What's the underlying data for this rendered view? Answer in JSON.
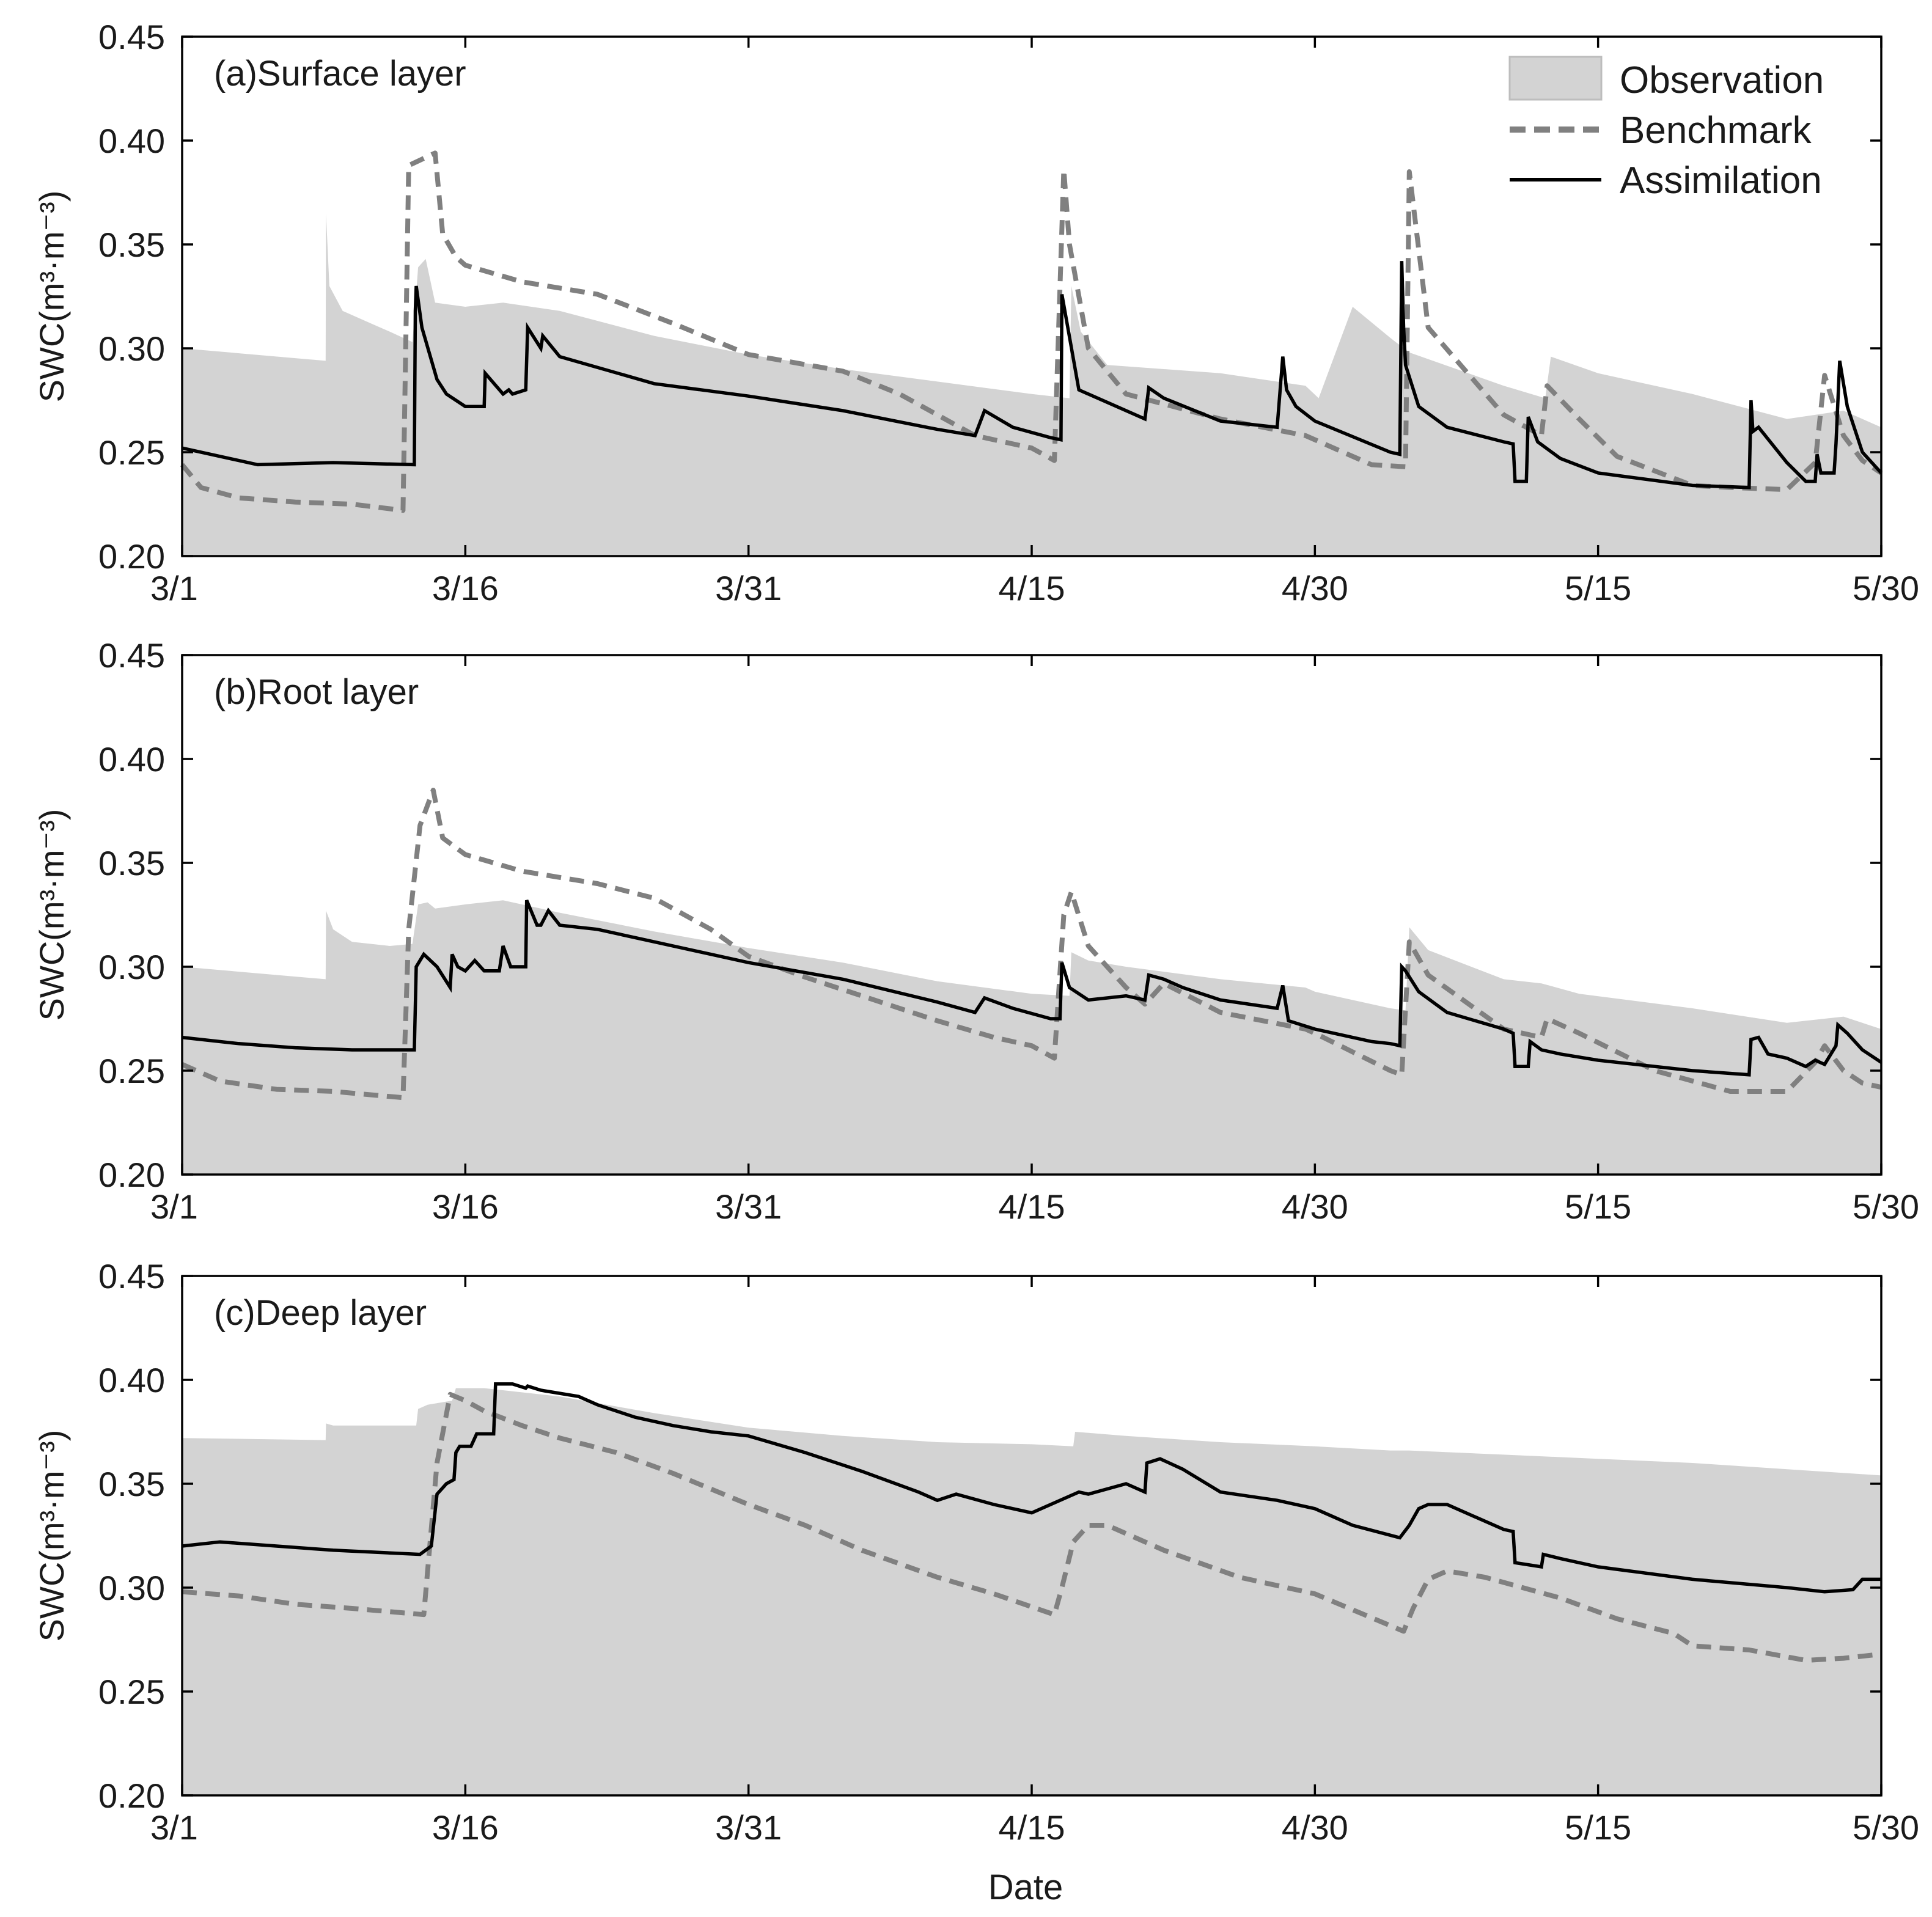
{
  "figure": {
    "xlabel": "Date",
    "legend": {
      "position": "top-right of panel (a)",
      "entries": [
        {
          "key": "observation",
          "label": "Observation",
          "style": "area",
          "color": "#d3d3d3"
        },
        {
          "key": "benchmark",
          "label": "Benchmark",
          "style": "dashed",
          "color": "#808080"
        },
        {
          "key": "assimilation",
          "label": "Assimilation",
          "style": "solid",
          "color": "#000000"
        }
      ]
    },
    "colors": {
      "observation": "#d3d3d3",
      "benchmark": "#808080",
      "assimilation": "#000000",
      "axis": "#000000"
    }
  },
  "chart_data": [
    {
      "type": "area",
      "title": "(a)Surface layer",
      "ylabel": "SWC(m³·m⁻³)",
      "xlabel": "",
      "x_unit": "days since 3/1",
      "xlim": [
        0,
        90
      ],
      "ylim": [
        0.2,
        0.45
      ],
      "xticks": [
        0,
        15,
        30,
        45,
        60,
        75,
        90
      ],
      "xtick_labels": [
        "3/1",
        "3/16",
        "3/31",
        "4/15",
        "4/30",
        "5/15",
        "5/30"
      ],
      "yticks": [
        0.2,
        0.25,
        0.3,
        0.35,
        0.4,
        0.45
      ],
      "ytick_labels": [
        "0.20",
        "0.25",
        "0.30",
        "0.35",
        "0.40",
        "0.45"
      ],
      "series": [
        {
          "name": "Observation",
          "x": [
            0,
            7.6,
            7.62,
            7.8,
            8.5,
            10,
            11,
            12.2,
            12.5,
            12.9,
            13.4,
            15,
            17,
            20,
            25,
            30,
            35,
            40,
            45,
            47.0,
            47.1,
            47.6,
            49,
            55,
            59.5,
            60.2,
            62,
            64,
            65,
            70,
            72.2,
            72.5,
            75,
            80,
            85,
            88,
            90
          ],
          "y": [
            0.3,
            0.294,
            0.365,
            0.33,
            0.318,
            0.312,
            0.308,
            0.303,
            0.339,
            0.343,
            0.322,
            0.32,
            0.322,
            0.318,
            0.306,
            0.297,
            0.29,
            0.284,
            0.278,
            0.276,
            0.33,
            0.308,
            0.292,
            0.288,
            0.282,
            0.276,
            0.32,
            0.305,
            0.298,
            0.282,
            0.276,
            0.296,
            0.288,
            0.278,
            0.266,
            0.27,
            0.262
          ]
        },
        {
          "name": "Benchmark",
          "x": [
            0,
            1,
            3,
            6,
            9,
            11.7,
            12,
            12.7,
            13.4,
            13.8,
            14.5,
            15,
            18,
            22,
            26,
            30,
            35,
            38,
            40,
            42,
            45,
            46.2,
            46.7,
            47,
            48,
            50,
            55,
            59.5,
            62,
            63,
            64.8,
            65,
            66,
            70,
            72,
            72.3,
            74,
            76,
            80,
            82,
            85,
            86.5,
            87,
            88,
            89,
            90
          ],
          "y": [
            0.244,
            0.233,
            0.228,
            0.226,
            0.225,
            0.222,
            0.388,
            0.391,
            0.394,
            0.355,
            0.344,
            0.34,
            0.332,
            0.326,
            0.312,
            0.297,
            0.289,
            0.278,
            0.268,
            0.258,
            0.252,
            0.246,
            0.386,
            0.35,
            0.3,
            0.278,
            0.266,
            0.258,
            0.248,
            0.244,
            0.243,
            0.385,
            0.31,
            0.268,
            0.258,
            0.282,
            0.266,
            0.248,
            0.234,
            0.233,
            0.232,
            0.245,
            0.287,
            0.258,
            0.246,
            0.24
          ]
        },
        {
          "name": "Assimilation",
          "x": [
            0,
            4,
            8,
            12.3,
            12.35,
            12.4,
            12.7,
            13.5,
            14,
            15,
            16,
            16.05,
            17,
            17.3,
            17.5,
            18.2,
            18.3,
            19,
            19.1,
            20,
            25,
            30,
            35,
            40,
            42,
            42.5,
            44,
            46,
            46.55,
            46.6,
            47.5,
            50,
            51,
            51.2,
            52,
            55,
            58,
            58.3,
            58.5,
            59,
            60,
            64,
            64.5,
            64.6,
            64.7,
            64.8,
            65.5,
            67,
            70,
            70.5,
            70.6,
            71.2,
            71.3,
            71.8,
            73,
            75,
            80,
            83,
            83.1,
            83.2,
            83.5,
            85,
            86,
            86.5,
            86.6,
            86.8,
            87.5,
            87.6,
            87.8,
            88.2,
            89,
            90
          ],
          "y": [
            0.252,
            0.244,
            0.245,
            0.244,
            0.318,
            0.33,
            0.31,
            0.285,
            0.278,
            0.272,
            0.272,
            0.288,
            0.278,
            0.28,
            0.278,
            0.28,
            0.31,
            0.3,
            0.306,
            0.296,
            0.283,
            0.277,
            0.27,
            0.261,
            0.258,
            0.27,
            0.262,
            0.257,
            0.256,
            0.326,
            0.28,
            0.27,
            0.266,
            0.281,
            0.276,
            0.265,
            0.262,
            0.296,
            0.28,
            0.272,
            0.265,
            0.25,
            0.249,
            0.342,
            0.31,
            0.292,
            0.272,
            0.262,
            0.255,
            0.254,
            0.236,
            0.236,
            0.267,
            0.255,
            0.247,
            0.24,
            0.234,
            0.233,
            0.275,
            0.26,
            0.262,
            0.245,
            0.236,
            0.236,
            0.249,
            0.24,
            0.24,
            0.254,
            0.294,
            0.272,
            0.25,
            0.24
          ]
        }
      ]
    },
    {
      "type": "area",
      "title": "(b)Root layer",
      "ylabel": "SWC(m³·m⁻³)",
      "xlabel": "",
      "x_unit": "days since 3/1",
      "xlim": [
        0,
        90
      ],
      "ylim": [
        0.2,
        0.45
      ],
      "xticks": [
        0,
        15,
        30,
        45,
        60,
        75,
        90
      ],
      "xtick_labels": [
        "3/1",
        "3/16",
        "3/31",
        "4/15",
        "4/30",
        "5/15",
        "5/30"
      ],
      "yticks": [
        0.2,
        0.25,
        0.3,
        0.35,
        0.4,
        0.45
      ],
      "ytick_labels": [
        "0.20",
        "0.25",
        "0.30",
        "0.35",
        "0.40",
        "0.45"
      ],
      "series": [
        {
          "name": "Observation",
          "x": [
            0,
            7.6,
            7.62,
            8,
            9,
            11,
            12.2,
            12.5,
            13,
            13.4,
            15,
            17,
            20,
            25,
            30,
            35,
            40,
            45,
            47.0,
            47.1,
            48,
            50,
            55,
            59.5,
            60,
            64,
            64.8,
            65,
            66,
            70,
            72,
            74,
            80,
            85,
            88,
            90
          ],
          "y": [
            0.3,
            0.294,
            0.327,
            0.318,
            0.312,
            0.31,
            0.311,
            0.33,
            0.331,
            0.328,
            0.33,
            0.332,
            0.326,
            0.317,
            0.309,
            0.302,
            0.293,
            0.287,
            0.286,
            0.307,
            0.303,
            0.3,
            0.294,
            0.29,
            0.288,
            0.28,
            0.279,
            0.319,
            0.308,
            0.294,
            0.292,
            0.287,
            0.28,
            0.273,
            0.276,
            0.27
          ]
        },
        {
          "name": "Benchmark",
          "x": [
            0,
            2,
            5,
            8,
            11.7,
            12,
            12.6,
            13.3,
            13.8,
            15,
            18,
            22,
            25,
            28,
            30,
            33,
            37,
            40,
            43,
            45,
            46.2,
            46.7,
            47.1,
            48,
            50,
            51,
            52,
            55,
            59.5,
            60,
            62,
            64,
            64.6,
            65,
            66,
            70,
            72,
            72.3,
            74,
            78,
            82,
            85,
            86.5,
            87,
            88,
            89,
            90
          ],
          "y": [
            0.253,
            0.245,
            0.241,
            0.24,
            0.237,
            0.318,
            0.368,
            0.385,
            0.362,
            0.354,
            0.346,
            0.34,
            0.333,
            0.318,
            0.305,
            0.295,
            0.283,
            0.274,
            0.266,
            0.262,
            0.256,
            0.325,
            0.336,
            0.31,
            0.29,
            0.282,
            0.292,
            0.278,
            0.27,
            0.268,
            0.259,
            0.25,
            0.248,
            0.312,
            0.296,
            0.27,
            0.266,
            0.275,
            0.268,
            0.25,
            0.24,
            0.24,
            0.254,
            0.262,
            0.25,
            0.244,
            0.242
          ]
        },
        {
          "name": "Assimilation",
          "x": [
            0,
            3,
            6,
            9,
            12.3,
            12.4,
            12.8,
            13.5,
            14.2,
            14.3,
            14.6,
            15,
            15.5,
            16,
            16.2,
            16.8,
            17,
            17.4,
            17.5,
            18.2,
            18.25,
            18.8,
            19,
            19.4,
            20,
            22,
            25,
            30,
            35,
            40,
            42,
            42.5,
            44,
            46,
            46.5,
            46.6,
            47,
            48,
            50,
            51,
            51.2,
            52,
            53,
            55,
            58,
            58.3,
            58.6,
            60,
            63,
            64,
            64.5,
            64.6,
            64.8,
            65.5,
            67,
            70,
            70.5,
            70.6,
            71.3,
            71.4,
            72,
            73,
            75,
            80,
            83,
            83.1,
            83.5,
            84,
            85,
            86,
            86.5,
            87,
            87.6,
            87.7,
            88.2,
            89,
            90
          ],
          "y": [
            0.266,
            0.263,
            0.261,
            0.26,
            0.26,
            0.3,
            0.306,
            0.3,
            0.29,
            0.306,
            0.3,
            0.298,
            0.303,
            0.298,
            0.298,
            0.298,
            0.31,
            0.3,
            0.3,
            0.3,
            0.332,
            0.32,
            0.32,
            0.327,
            0.32,
            0.318,
            0.312,
            0.302,
            0.294,
            0.283,
            0.278,
            0.285,
            0.28,
            0.275,
            0.275,
            0.302,
            0.29,
            0.284,
            0.286,
            0.284,
            0.296,
            0.294,
            0.29,
            0.284,
            0.28,
            0.291,
            0.274,
            0.27,
            0.264,
            0.263,
            0.262,
            0.3,
            0.298,
            0.288,
            0.278,
            0.27,
            0.268,
            0.252,
            0.252,
            0.264,
            0.26,
            0.258,
            0.255,
            0.25,
            0.248,
            0.265,
            0.266,
            0.258,
            0.256,
            0.252,
            0.255,
            0.253,
            0.262,
            0.272,
            0.268,
            0.26,
            0.254
          ]
        }
      ]
    },
    {
      "type": "area",
      "title": "(c)Deep layer",
      "ylabel": "SWC(m³·m⁻³)",
      "xlabel": "Date",
      "x_unit": "days since 3/1",
      "xlim": [
        0,
        90
      ],
      "ylim": [
        0.2,
        0.45
      ],
      "xticks": [
        0,
        15,
        30,
        45,
        60,
        75,
        90
      ],
      "xtick_labels": [
        "3/1",
        "3/16",
        "3/31",
        "4/15",
        "4/30",
        "5/15",
        "5/30"
      ],
      "yticks": [
        0.2,
        0.25,
        0.3,
        0.35,
        0.4,
        0.45
      ],
      "ytick_labels": [
        "0.20",
        "0.25",
        "0.30",
        "0.35",
        "0.40",
        "0.45"
      ],
      "series": [
        {
          "name": "Observation",
          "x": [
            0,
            7.6,
            7.62,
            8,
            12.4,
            12.5,
            13,
            14.3,
            14.5,
            16,
            20,
            25,
            30,
            35,
            40,
            45,
            47.2,
            47.3,
            50,
            55,
            60,
            64,
            65,
            70,
            75,
            80,
            85,
            90
          ],
          "y": [
            0.372,
            0.371,
            0.379,
            0.378,
            0.378,
            0.386,
            0.388,
            0.39,
            0.396,
            0.396,
            0.392,
            0.384,
            0.377,
            0.373,
            0.37,
            0.369,
            0.368,
            0.375,
            0.373,
            0.37,
            0.368,
            0.366,
            0.366,
            0.364,
            0.362,
            0.36,
            0.357,
            0.354
          ]
        },
        {
          "name": "Benchmark",
          "x": [
            0,
            3,
            6,
            9,
            12.8,
            13.5,
            14.2,
            15,
            16,
            18,
            20,
            23,
            26,
            30,
            33,
            36,
            40,
            43,
            46.2,
            46.6,
            47.2,
            48,
            49,
            52,
            56,
            60,
            64.7,
            65.2,
            66,
            67,
            69,
            73,
            76,
            79,
            80,
            83,
            86,
            88,
            90
          ],
          "y": [
            0.298,
            0.296,
            0.292,
            0.29,
            0.287,
            0.36,
            0.393,
            0.39,
            0.385,
            0.378,
            0.372,
            0.365,
            0.355,
            0.34,
            0.33,
            0.318,
            0.305,
            0.297,
            0.287,
            0.3,
            0.322,
            0.33,
            0.33,
            0.318,
            0.305,
            0.297,
            0.279,
            0.29,
            0.304,
            0.308,
            0.305,
            0.295,
            0.285,
            0.278,
            0.272,
            0.27,
            0.265,
            0.266,
            0.268
          ]
        },
        {
          "name": "Assimilation",
          "x": [
            0,
            2,
            5,
            8,
            12.6,
            13.2,
            13.5,
            14.0,
            14.4,
            14.5,
            14.7,
            15.3,
            15.6,
            16.5,
            16.6,
            17.5,
            18.2,
            18.3,
            19,
            21,
            22,
            24,
            26,
            28,
            30,
            33,
            36,
            39,
            40,
            41,
            43,
            45,
            47.0,
            47.5,
            48,
            50,
            51.0,
            51.1,
            51.8,
            53,
            55,
            58,
            60,
            62,
            64.5,
            65,
            65.5,
            66,
            67,
            68,
            70,
            70.5,
            70.6,
            72,
            72.1,
            73,
            75,
            80,
            85,
            87,
            88.5,
            89,
            90
          ],
          "y": [
            0.32,
            0.322,
            0.32,
            0.318,
            0.316,
            0.32,
            0.345,
            0.35,
            0.352,
            0.365,
            0.368,
            0.368,
            0.374,
            0.374,
            0.398,
            0.398,
            0.396,
            0.397,
            0.395,
            0.392,
            0.388,
            0.382,
            0.378,
            0.375,
            0.373,
            0.365,
            0.356,
            0.346,
            0.342,
            0.345,
            0.34,
            0.336,
            0.344,
            0.346,
            0.345,
            0.35,
            0.346,
            0.36,
            0.362,
            0.357,
            0.346,
            0.342,
            0.338,
            0.33,
            0.324,
            0.33,
            0.338,
            0.34,
            0.34,
            0.336,
            0.328,
            0.327,
            0.312,
            0.31,
            0.316,
            0.314,
            0.31,
            0.304,
            0.3,
            0.298,
            0.299,
            0.304,
            0.304
          ]
        }
      ]
    }
  ]
}
